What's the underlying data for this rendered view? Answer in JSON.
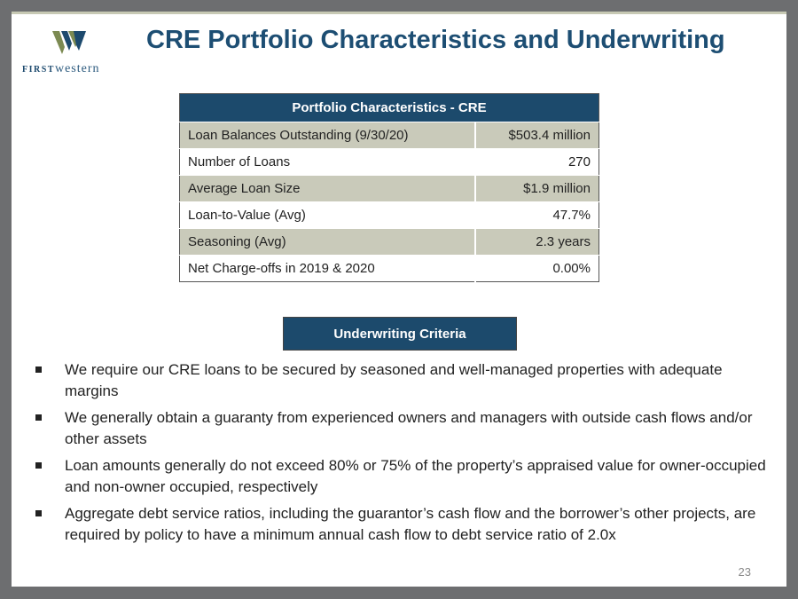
{
  "header": {
    "title": "CRE Portfolio Characteristics and Underwriting",
    "logo": {
      "first": "FIRST",
      "western": "western",
      "icon": "fw-monogram-icon"
    }
  },
  "table": {
    "header": "Portfolio Characteristics - CRE",
    "rows": [
      {
        "label": "Loan Balances Outstanding (9/30/20)",
        "value": "$503.4 million"
      },
      {
        "label": "Number of Loans",
        "value": "270"
      },
      {
        "label": "Average Loan Size",
        "value": "$1.9 million"
      },
      {
        "label": "Loan-to-Value (Avg)",
        "value": "47.7%"
      },
      {
        "label": "Seasoning (Avg)",
        "value": "2.3 years"
      },
      {
        "label": "Net Charge-offs in 2019 & 2020",
        "value": "0.00%"
      }
    ]
  },
  "underwriting": {
    "label": "Underwriting Criteria",
    "bullets": [
      "We require our CRE loans to be secured by seasoned and well-managed properties with adequate margins",
      "We generally obtain a guaranty from experienced owners and managers with outside cash flows and/or other assets",
      "Loan amounts generally do not exceed 80% or 75% of the property’s appraised value for owner-occupied and non-owner occupied, respectively",
      "Aggregate debt service ratios, including the guarantor’s cash flow and the borrower’s other projects, are required by policy to have a minimum annual cash flow to debt service ratio of 2.0x"
    ]
  },
  "page_number": "23",
  "colors": {
    "navy": "#1c4a6c",
    "title": "#1d4e73",
    "row_shade": "#c9caba",
    "frame": "#6d6e70"
  }
}
